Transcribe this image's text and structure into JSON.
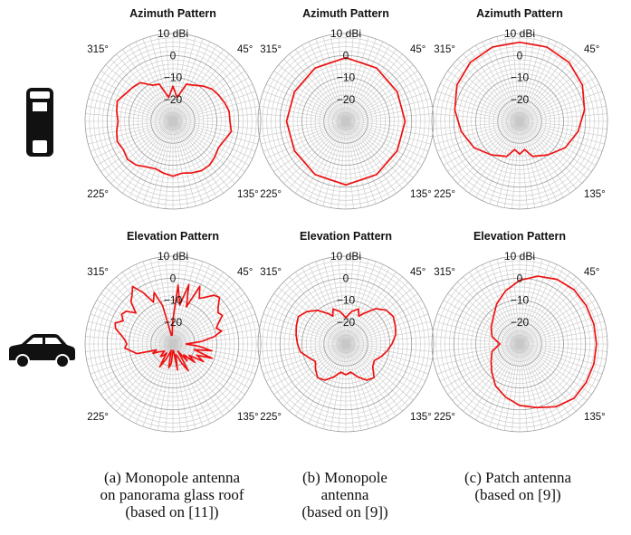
{
  "chart_data": [
    {
      "type": "polar-line",
      "title": "Azimuth Pattern",
      "radial_unit": "dBi",
      "r_range": [
        -30,
        10
      ],
      "r_ticks": [
        "10 dBi",
        "0",
        "-10",
        "-20"
      ],
      "angle_tick_labels": [
        "45°",
        "135°",
        "225°",
        "315°"
      ],
      "angles_deg": [
        0,
        10,
        20,
        30,
        40,
        50,
        60,
        70,
        80,
        90,
        100,
        110,
        120,
        130,
        140,
        150,
        160,
        170,
        180,
        190,
        200,
        210,
        220,
        230,
        240,
        250,
        260,
        270,
        280,
        290,
        300,
        310,
        320,
        330,
        340,
        350
      ],
      "values_dbi": [
        -14,
        -19,
        -12,
        -11,
        -9,
        -7,
        -6,
        -5,
        -4,
        -4,
        -3,
        -5,
        -6,
        -5,
        -4,
        -4,
        -5,
        -6,
        -5,
        -6,
        -7,
        -6,
        -4,
        -3,
        -4,
        -3,
        -4,
        -5,
        -4,
        -3,
        -5,
        -6,
        -7,
        -11,
        -12,
        -19
      ],
      "series_color": "#ee1111"
    },
    {
      "type": "polar-line",
      "title": "Azimuth Pattern",
      "radial_unit": "dBi",
      "r_range": [
        -30,
        10
      ],
      "r_ticks": [
        "10 dBi",
        "0",
        "-10",
        "-20"
      ],
      "angle_tick_labels": [
        "45°",
        "135°",
        "225°",
        "315°"
      ],
      "angles_deg": [
        0,
        30,
        60,
        90,
        120,
        150,
        180,
        210,
        240,
        270,
        300,
        330
      ],
      "values_dbi": [
        -1,
        -2,
        -3,
        -3,
        -3,
        -2,
        -1,
        -2,
        -3,
        -3,
        -3,
        -2
      ],
      "series_color": "#ee1111"
    },
    {
      "type": "polar-line",
      "title": "Azimuth Pattern",
      "radial_unit": "dBi",
      "r_range": [
        -30,
        10
      ],
      "r_ticks": [
        "10 dBi",
        "0",
        "-10",
        "-20"
      ],
      "angle_tick_labels": [
        "45°",
        "135°",
        "225°",
        "315°"
      ],
      "angles_deg": [
        0,
        20,
        40,
        60,
        80,
        100,
        120,
        140,
        160,
        170,
        180,
        190,
        200,
        220,
        240,
        260,
        280,
        300,
        320,
        340
      ],
      "values_dbi": [
        6,
        6,
        5,
        3,
        0,
        -3,
        -6,
        -10,
        -13,
        -17,
        -15,
        -17,
        -13,
        -10,
        -6,
        -3,
        0,
        3,
        5,
        6
      ],
      "series_color": "#ee1111"
    },
    {
      "type": "polar-line",
      "title": "Elevation Pattern",
      "radial_unit": "dBi",
      "r_range": [
        -30,
        10
      ],
      "r_ticks": [
        "10 dBi",
        "0",
        "-10",
        "-20"
      ],
      "angle_tick_labels": [
        "45°",
        "135°",
        "225°",
        "315°"
      ],
      "angles_deg": [
        0,
        5,
        10,
        15,
        20,
        25,
        30,
        35,
        40,
        45,
        50,
        55,
        60,
        65,
        70,
        75,
        80,
        85,
        90,
        95,
        100,
        105,
        110,
        115,
        120,
        125,
        130,
        135,
        140,
        145,
        150,
        155,
        160,
        165,
        170,
        175,
        180,
        185,
        190,
        195,
        200,
        205,
        210,
        215,
        220,
        225,
        230,
        235,
        240,
        245,
        250,
        255,
        260,
        265,
        270,
        275,
        280,
        285,
        290,
        295,
        300,
        305,
        310,
        315,
        320,
        325,
        330,
        335,
        340,
        345,
        350,
        355
      ],
      "values_dbi": [
        -19,
        -3,
        -12,
        -2,
        -12,
        -1,
        -6,
        -4,
        -1,
        0,
        -3,
        -5,
        -4,
        -7,
        -9,
        -7,
        -11,
        -17,
        -24,
        -18,
        -12,
        -20,
        -11,
        -18,
        -14,
        -21,
        -17,
        -23,
        -20,
        -26,
        -16,
        -20,
        -24,
        -25,
        -18,
        -27,
        -27,
        -21,
        -19,
        -27,
        -25,
        -22,
        -18,
        -25,
        -23,
        -22,
        -25,
        -24,
        -23,
        -20,
        -22,
        -13,
        -11,
        -8,
        -9,
        -8,
        -6,
        -3,
        -2,
        -5,
        -3,
        -4,
        -8,
        -3,
        -1,
        2,
        -3,
        -9,
        -5,
        -12,
        -26,
        -26
      ],
      "series_color": "#ee1111"
    },
    {
      "type": "polar-line",
      "title": "Elevation Pattern",
      "radial_unit": "dBi",
      "r_range": [
        -30,
        10
      ],
      "r_ticks": [
        "10 dBi",
        "0",
        "-10",
        "-20"
      ],
      "angle_tick_labels": [
        "45°",
        "135°",
        "225°",
        "315°"
      ],
      "angles_deg": [
        0,
        10,
        20,
        25,
        30,
        40,
        50,
        60,
        70,
        80,
        90,
        100,
        110,
        120,
        130,
        140,
        150,
        160,
        170,
        180,
        190,
        200,
        210,
        220,
        230,
        240,
        250,
        260,
        270,
        280,
        290,
        300,
        310,
        320,
        330,
        335,
        340,
        350
      ],
      "values_dbi": [
        -18,
        -15,
        -13,
        -16,
        -14,
        -9,
        -6,
        -5,
        -6,
        -7,
        -9,
        -11,
        -13,
        -15,
        -14,
        -10,
        -11,
        -14,
        -17,
        -16,
        -17,
        -14,
        -11,
        -10,
        -12,
        -14,
        -12,
        -9,
        -8,
        -7,
        -6,
        -5,
        -7,
        -10,
        -14,
        -16,
        -13,
        -15
      ],
      "series_color": "#ee1111"
    },
    {
      "type": "polar-line",
      "title": "Elevation Pattern",
      "radial_unit": "dBi",
      "r_range": [
        -30,
        10
      ],
      "r_ticks": [
        "10 dBi",
        "0",
        "-10",
        "-20"
      ],
      "angle_tick_labels": [
        "45°",
        "135°",
        "225°",
        "315°"
      ],
      "angles_deg": [
        0,
        15,
        30,
        45,
        60,
        75,
        90,
        105,
        120,
        135,
        150,
        165,
        180,
        195,
        210,
        225,
        240,
        255,
        265,
        270,
        275,
        285,
        300,
        315,
        330,
        345
      ],
      "values_dbi": [
        -1,
        2,
        4,
        5,
        5,
        5,
        5,
        5,
        5,
        5,
        3,
        0,
        -2,
        -5,
        -8,
        -12,
        -15,
        -17,
        -20,
        -21,
        -20,
        -17,
        -15,
        -13,
        -9,
        -5
      ],
      "series_color": "#ee1111"
    }
  ],
  "captions": [
    "(a) Monopole antenna\non panorama glass roof\n(based on [11])",
    "(b) Monopole\nantenna\n(based on [9])",
    "(c) Patch antenna\n(based on [9])"
  ],
  "icons": {
    "top": "car-top-view-icon",
    "side": "car-side-view-icon"
  }
}
